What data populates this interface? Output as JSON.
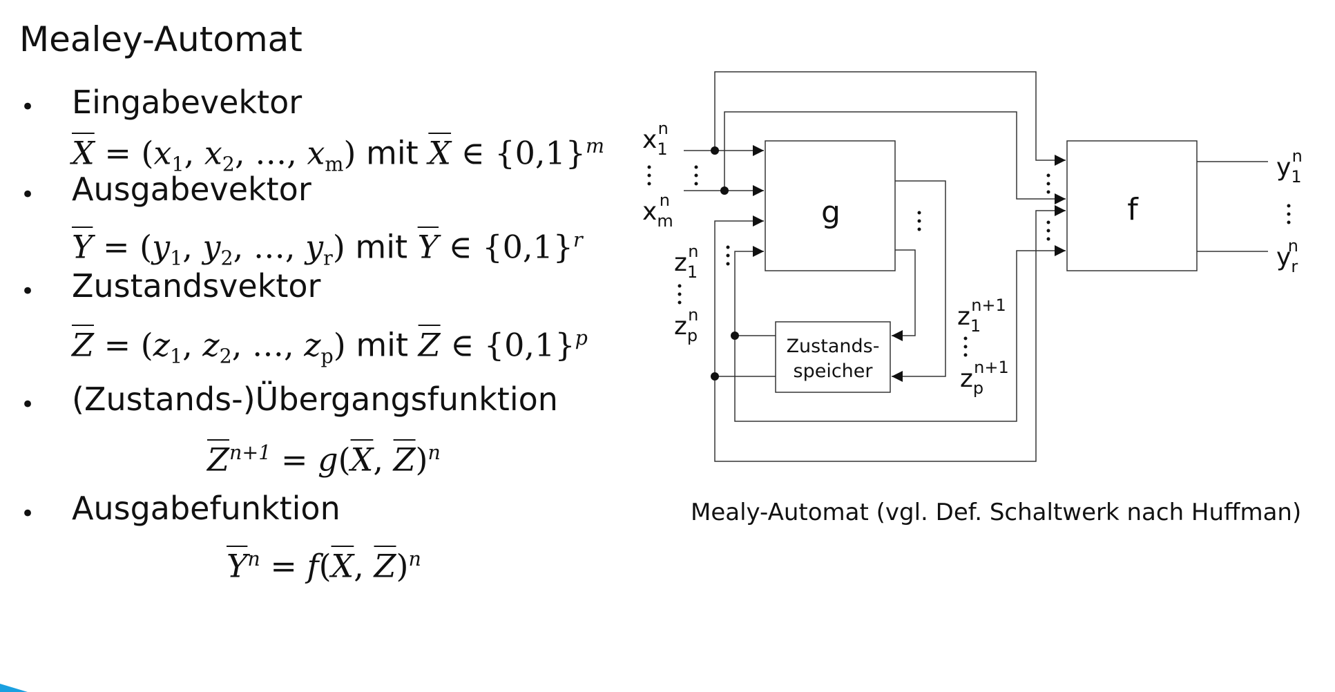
{
  "title": "Mealey-Automat",
  "bullets": [
    {
      "label": "Eingabevektor",
      "vec": "X",
      "comps": [
        "x",
        "x",
        "x"
      ],
      "subs": [
        "1",
        "2",
        "m"
      ],
      "mit": "mit",
      "set": "{0,1}",
      "exp": "m"
    },
    {
      "label": "Ausgabevektor",
      "vec": "Y",
      "comps": [
        "y",
        "y",
        "y"
      ],
      "subs": [
        "1",
        "2",
        "r"
      ],
      "mit": "mit",
      "set": "{0,1}",
      "exp": "r"
    },
    {
      "label": "Zustandsvektor",
      "vec": "Z",
      "comps": [
        "z",
        "z",
        "z"
      ],
      "subs": [
        "1",
        "2",
        "p"
      ],
      "mit": "mit",
      "set": "{0,1}",
      "exp": "p"
    },
    {
      "label": "(Zustands-)Übergangsfunktion",
      "lhs": "Z",
      "lhs_sup": "n+1",
      "fn": "g",
      "args": [
        "X",
        "Z"
      ],
      "exp": "n"
    },
    {
      "label": "Ausgabefunktion",
      "lhs": "Y",
      "lhs_sup": "n",
      "fn": "f",
      "args": [
        "X",
        "Z"
      ],
      "exp": "n"
    }
  ],
  "diagram": {
    "block_g": "g",
    "block_f": "f",
    "memory_line1": "Zustands-",
    "memory_line2": "speicher",
    "inputs": [
      {
        "base": "x",
        "sub": "1",
        "sup": "n"
      },
      {
        "base": "x",
        "sub": "m",
        "sup": "n"
      }
    ],
    "state_in": [
      {
        "base": "z",
        "sub": "1",
        "sup": "n"
      },
      {
        "base": "z",
        "sub": "p",
        "sup": "n"
      }
    ],
    "state_next": [
      {
        "base": "z",
        "sub": "1",
        "sup": "n+1"
      },
      {
        "base": "z",
        "sub": "p",
        "sup": "n+1"
      }
    ],
    "outputs": [
      {
        "base": "y",
        "sub": "1",
        "sup": "n"
      },
      {
        "base": "y",
        "sub": "r",
        "sup": "n"
      }
    ],
    "caption": "Mealy-Automat (vgl. Def. Schaltwerk nach Huffman)"
  }
}
